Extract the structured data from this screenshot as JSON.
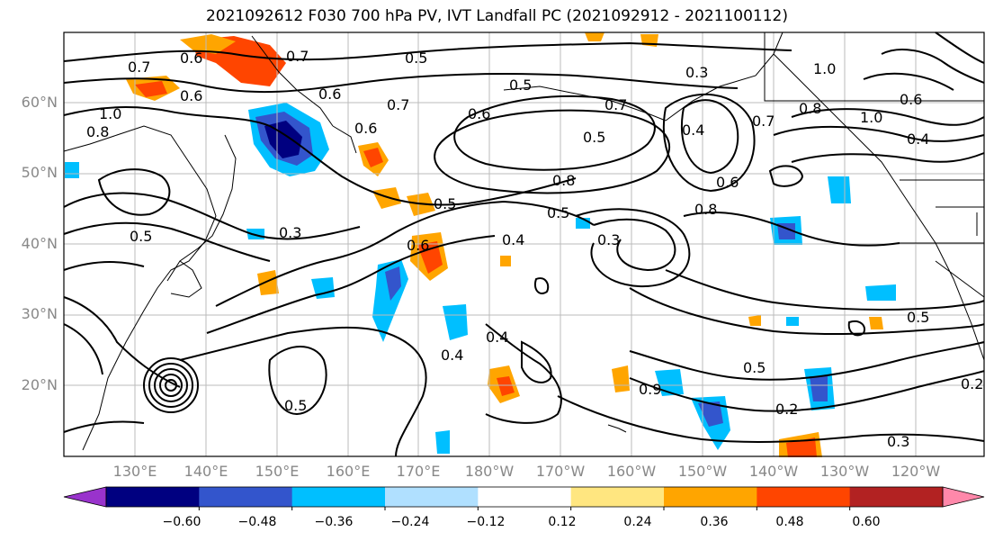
{
  "title": "2021092612 F030 700 hPa PV, IVT Landfall PC (2021092912 - 2021100112)",
  "lat_labels": [
    "60°N",
    "50°N",
    "40°N",
    "30°N",
    "20°N"
  ],
  "lon_labels": [
    "130°E",
    "140°E",
    "150°E",
    "160°E",
    "170°E",
    "180°W",
    "170°W",
    "160°W",
    "150°W",
    "140°W",
    "130°W",
    "120°W"
  ],
  "colorbar": {
    "colors": [
      "#9933cc",
      "#000080",
      "#3355cc",
      "#00bfff",
      "#b0e0ff",
      "#ffffff",
      "#ffe680",
      "#ffa500",
      "#ff4500",
      "#b22222",
      "#ff88aa"
    ],
    "tick_labels": [
      "−0.60",
      "−0.48",
      "−0.36",
      "−0.24",
      "−0.12",
      "0.12",
      "0.24",
      "0.36",
      "0.48",
      "0.60"
    ]
  },
  "contour_labels": [
    "0.6",
    "0.7",
    "0.5",
    "0.7",
    "0.6",
    "0.6",
    "0.8",
    "1.0",
    "0.5",
    "0.6",
    "0.7",
    "0.6",
    "0.5",
    "0.7",
    "0.8",
    "0.6",
    "0.5",
    "0.8",
    "0.3",
    "0.4",
    "0.3",
    "0.5",
    "0.6",
    "0.5",
    "0.4",
    "0.4",
    "0.5",
    "0.9",
    "0.5",
    "0.2",
    "0.3",
    "0.2",
    "0.5",
    "1.0",
    "1.0",
    "0.4",
    "0.6",
    "0.4",
    "0.7",
    "0.3",
    "0.8"
  ]
}
